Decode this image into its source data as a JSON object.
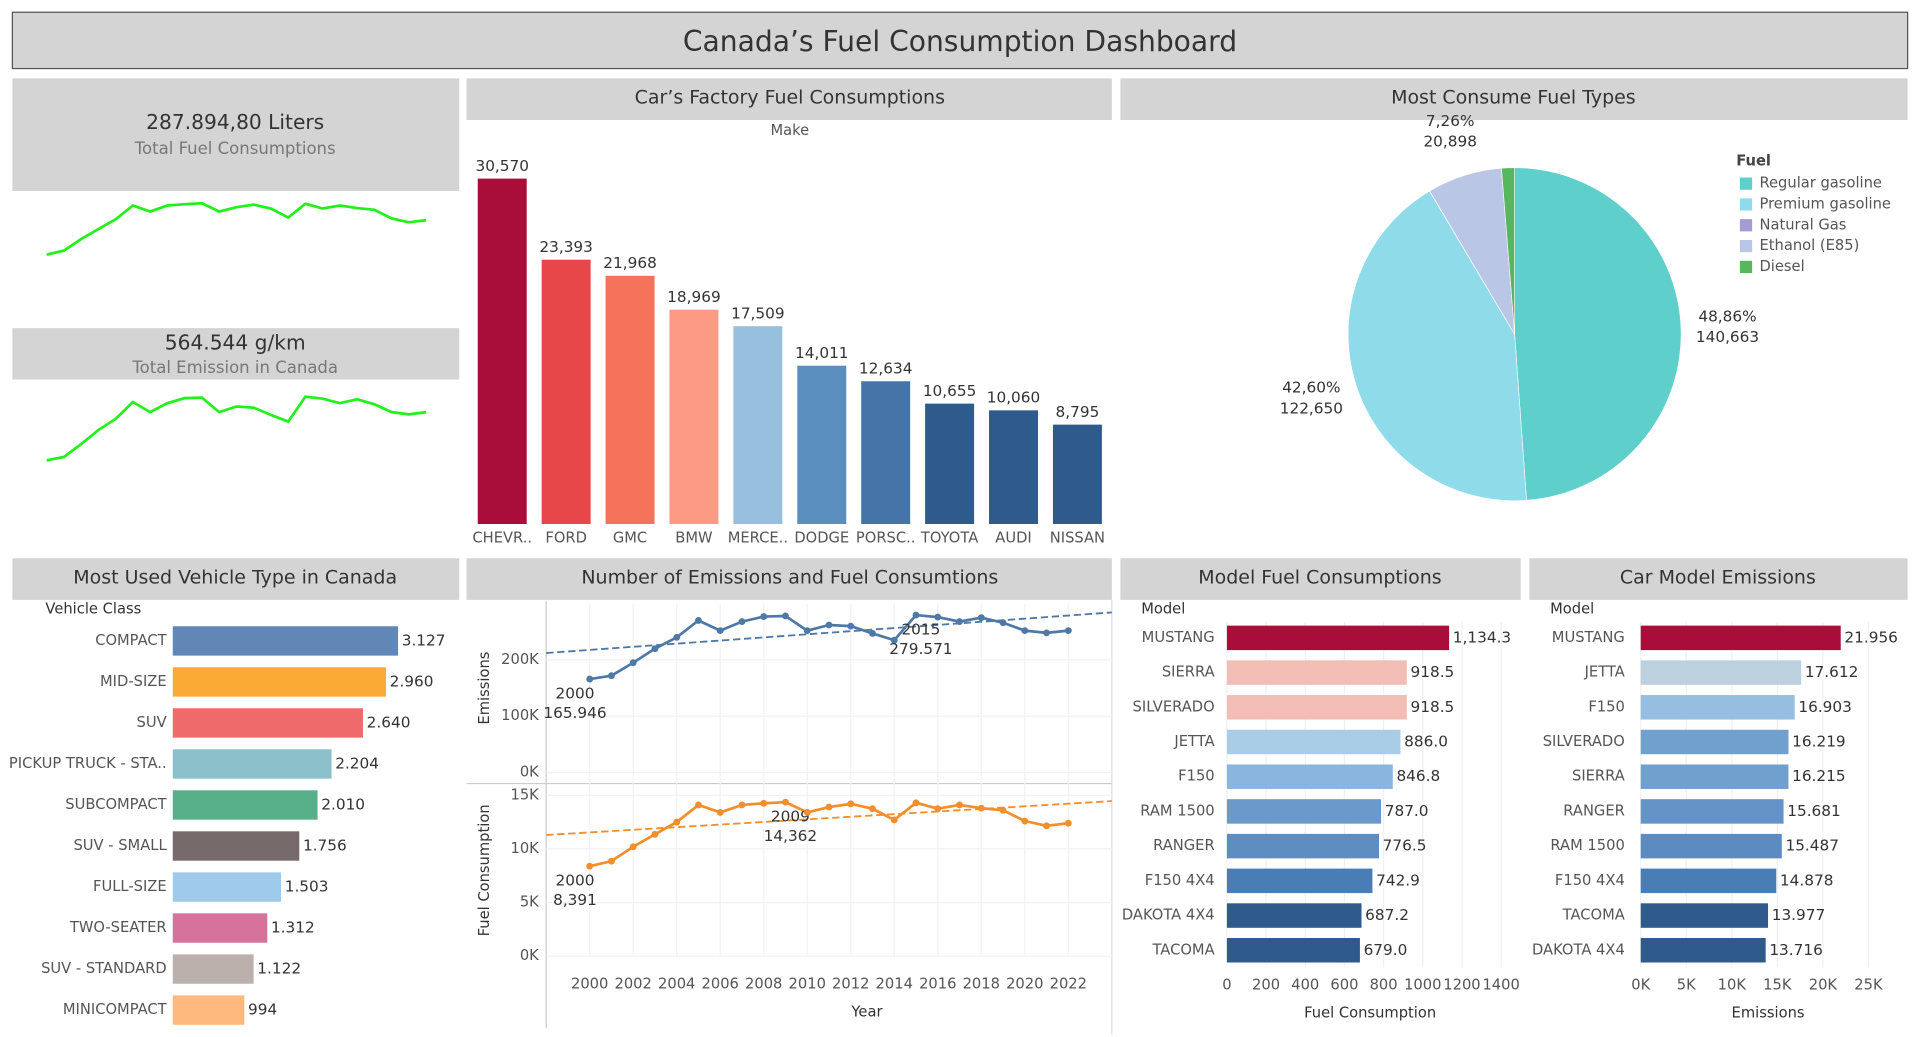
{
  "title": "Canada’s Fuel Consumption Dashboard",
  "kpis": [
    {
      "value": "287.894,80 Liters",
      "label": "Total Fuel Consumptions",
      "color": "#22f01a"
    },
    {
      "value": "564.544 g/km",
      "label": "Total Emission in Canada",
      "color": "#22f01a"
    }
  ],
  "chart_data": [
    {
      "type": "bar",
      "title": "Car’s Factory Fuel Consumptions",
      "x_label": "Make",
      "categories": [
        "CHEVR..",
        "FORD",
        "GMC",
        "BMW",
        "MERCE..",
        "DODGE",
        "PORSC..",
        "TOYOTA",
        "AUDI",
        "NISSAN"
      ],
      "values": [
        30570,
        23393,
        21968,
        18969,
        17509,
        14011,
        12634,
        10655,
        10060,
        8795
      ],
      "value_labels": [
        "30,570",
        "23,393",
        "21,968",
        "18,969",
        "17,509",
        "14,011",
        "12,634",
        "10,655",
        "10,060",
        "8,795"
      ],
      "colors": [
        "#a90d3a",
        "#e8474a",
        "#f5735a",
        "#fc9a84",
        "#97c0df",
        "#5a8ebf",
        "#4575a8",
        "#2e5b8b",
        "#2e5b8b",
        "#2e5b8b"
      ],
      "ylim": [
        0,
        35000
      ]
    },
    {
      "type": "pie",
      "title": "Most Consume Fuel Types",
      "legend_title": "Fuel",
      "legend": "right",
      "categories": [
        "Regular gasoline",
        "Premium gasoline",
        "Natural Gas",
        "Ethanol (E85)",
        "Diesel"
      ],
      "values": [
        140663,
        122650,
        60,
        20898,
        3624
      ],
      "value_labels": [
        "140,663",
        "122,650",
        null,
        "20,898",
        null
      ],
      "percent_labels": [
        "48,86%",
        "42,60%",
        null,
        "7,26%",
        null
      ],
      "colors": [
        "#5ecfca",
        "#8fdbe9",
        "#a39bd3",
        "#b9c6e6",
        "#57b65e"
      ]
    },
    {
      "type": "hbar",
      "title": "Most Used Vehicle Type in Canada",
      "y_label": "Vehicle Class",
      "categories": [
        "COMPACT",
        "MID-SIZE",
        "SUV",
        "PICKUP TRUCK - STA..",
        "SUBCOMPACT",
        "SUV - SMALL",
        "FULL-SIZE",
        "TWO-SEATER",
        "SUV - STANDARD",
        "MINICOMPACT"
      ],
      "values": [
        3127,
        2960,
        2640,
        2204,
        2010,
        1756,
        1503,
        1312,
        1122,
        994
      ],
      "value_labels": [
        "3.127",
        "2.960",
        "2.640",
        "2.204",
        "2.010",
        "1.756",
        "1.503",
        "1.312",
        "1.122",
        "994"
      ],
      "colors": [
        "#6187b7",
        "#fbab35",
        "#ef6b6b",
        "#8bbfc9",
        "#58b08b",
        "#776a6a",
        "#9fcaeb",
        "#d6729b",
        "#bbb0ac",
        "#feba7e"
      ],
      "xlim": [
        0,
        3900
      ]
    },
    {
      "type": "line",
      "title": "Number of Emissions and Fuel Consumtions",
      "x_label": "Year",
      "y_label": "Emissions",
      "y2_label": "Fuel Consumption",
      "trend_lines": true,
      "grid": true,
      "x": [
        2000,
        2001,
        2002,
        2003,
        2004,
        2005,
        2006,
        2007,
        2008,
        2009,
        2010,
        2011,
        2012,
        2013,
        2014,
        2015,
        2016,
        2017,
        2018,
        2019,
        2020,
        2021,
        2022
      ],
      "xlim": [
        1998,
        2024
      ],
      "xticks": [
        2000,
        2002,
        2004,
        2006,
        2008,
        2010,
        2012,
        2014,
        2016,
        2018,
        2020,
        2022
      ],
      "ylim": [
        0,
        300000
      ],
      "yticks": [
        {
          "value": 0,
          "label": "0K"
        },
        {
          "value": 100000,
          "label": "100K"
        },
        {
          "value": 200000,
          "label": "200K"
        }
      ],
      "y2lim": [
        0,
        16000
      ],
      "y2ticks": [
        {
          "value": 0,
          "label": "0K"
        },
        {
          "value": 5000,
          "label": "5K"
        },
        {
          "value": 10000,
          "label": "10K"
        },
        {
          "value": 15000,
          "label": "15K"
        }
      ],
      "series": [
        {
          "name": "Emissions",
          "color": "#4e79a7",
          "axis": "y",
          "values": [
            165946,
            172000,
            195000,
            220000,
            240000,
            270000,
            252000,
            268000,
            277000,
            278000,
            252000,
            262000,
            260000,
            247000,
            235000,
            279571,
            276000,
            268000,
            275000,
            266000,
            252000,
            248000,
            252000
          ],
          "value_labels": [
            "165.946",
            null,
            null,
            null,
            null,
            null,
            null,
            null,
            null,
            null,
            null,
            null,
            null,
            null,
            null,
            "279.571",
            null,
            null,
            null,
            null,
            null,
            null,
            null
          ]
        },
        {
          "name": "Fuel Consumption",
          "color": "#f28e2b",
          "axis": "y2",
          "values": [
            8391,
            8860,
            10200,
            11360,
            12500,
            14100,
            13400,
            14100,
            14250,
            14362,
            13400,
            13900,
            14200,
            13750,
            12700,
            14300,
            13750,
            14100,
            13800,
            13600,
            12600,
            12150,
            12400
          ],
          "value_labels": [
            "8,391",
            null,
            null,
            null,
            null,
            null,
            null,
            null,
            null,
            "14,362",
            null,
            null,
            null,
            null,
            null,
            null,
            null,
            null,
            null,
            null,
            null,
            null,
            null
          ]
        }
      ]
    },
    {
      "type": "hbar",
      "title": "Model Fuel Consumptions",
      "y_label": "Model",
      "x_label": "Fuel Consumption",
      "categories": [
        "MUSTANG",
        "SIERRA",
        "SILVERADO",
        "JETTA",
        "F150",
        "RAM 1500",
        "RANGER",
        "F150 4X4",
        "DAKOTA 4X4",
        "TACOMA"
      ],
      "values": [
        1134.3,
        918.5,
        918.5,
        886.0,
        846.8,
        787.0,
        776.5,
        742.9,
        687.2,
        679.0
      ],
      "value_labels": [
        "1,134.3",
        "918.5",
        "918.5",
        "886.0",
        "846.8",
        "787.0",
        "776.5",
        "742.9",
        "687.2",
        "679.0"
      ],
      "colors": [
        "#a90d3a",
        "#f1bdb5",
        "#f1bdb5",
        "#a9cde7",
        "#8ab6de",
        "#6a9ac9",
        "#5e8dc1",
        "#4a7db6",
        "#2e5a8c",
        "#2e5a8c"
      ],
      "xlim": [
        0,
        1400
      ],
      "xticks": [
        0,
        200,
        400,
        600,
        800,
        1000,
        1200,
        1400
      ]
    },
    {
      "type": "hbar",
      "title": "Car Model Emissions",
      "y_label": "Model",
      "x_label": "Emissions",
      "categories": [
        "MUSTANG",
        "JETTA",
        "F150",
        "SILVERADO",
        "SIERRA",
        "RANGER",
        "RAM 1500",
        "F150 4X4",
        "TACOMA",
        "DAKOTA 4X4"
      ],
      "values": [
        21956,
        17612,
        16903,
        16219,
        16215,
        15681,
        15487,
        14878,
        13977,
        13716
      ],
      "value_labels": [
        "21.956",
        "17.612",
        "16.903",
        "16.219",
        "16.215",
        "15.681",
        "15.487",
        "14.878",
        "13.977",
        "13.716"
      ],
      "colors": [
        "#a90d3a",
        "#bdd0e0",
        "#95bee1",
        "#70a0cd",
        "#70a0cd",
        "#6494c7",
        "#5b8bc0",
        "#4a7db6",
        "#2e5a8c",
        "#2e5a8c"
      ],
      "xlim": [
        0,
        25000
      ],
      "xticks": [
        {
          "value": 0,
          "label": "0K"
        },
        {
          "value": 5000,
          "label": "5K"
        },
        {
          "value": 10000,
          "label": "10K"
        },
        {
          "value": 15000,
          "label": "15K"
        },
        {
          "value": 20000,
          "label": "20K"
        },
        {
          "value": 25000,
          "label": "25K"
        }
      ]
    }
  ]
}
